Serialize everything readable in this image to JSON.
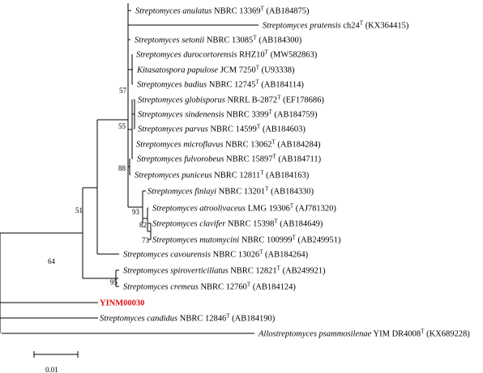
{
  "taxa": [
    {
      "genus": "Streptomyces",
      "species": "anulatus",
      "strain": "NBRC 13369",
      "accession": "(AB184875)"
    },
    {
      "genus": "Streptomyces",
      "species": "pratensis",
      "strain": "ch24",
      "accession": "(KX364415)"
    },
    {
      "genus": "Streptomyces",
      "species": "setonii",
      "strain": "NBRC 13085",
      "accession": "(AB184300)"
    },
    {
      "genus": "Streptomyces",
      "species": "durocortorensis",
      "strain": "RHZ10",
      "accession": "(MW582863)"
    },
    {
      "genus": "Kitasatospora",
      "species": "papulose",
      "strain": "JCM 7250",
      "accession": "(U93338)"
    },
    {
      "genus": "Streptomyces",
      "species": "badius",
      "strain": "NBRC 12745",
      "accession": "(AB184114)"
    },
    {
      "genus": "Streptomyces",
      "species": "globisporus",
      "strain": "NRRL B-2872",
      "accession": "(EF178686)"
    },
    {
      "genus": "Streptomyces",
      "species": "sindenensis",
      "strain": "NBRC 3399",
      "accession": "(AB184759)"
    },
    {
      "genus": "Streptomyces",
      "species": "parvus",
      "strain": "NBRC 14599",
      "accession": "(AB184603)"
    },
    {
      "genus": "Streptomyces",
      "species": "microflavus",
      "strain": "NBRC 13062",
      "accession": "(AB184284)"
    },
    {
      "genus": "Streptomyces",
      "species": "fulvorobeus",
      "strain": "NBRC 15897",
      "accession": "(AB184711)"
    },
    {
      "genus": "Streptomyces",
      "species": "puniceus",
      "strain": "NBRC 12811",
      "accession": "(AB184163)"
    },
    {
      "genus": "Streptomyces",
      "species": "finlayi",
      "strain": "NBRC 13201",
      "accession": "(AB184330)"
    },
    {
      "genus": "Streptomyces",
      "species": "atroolivaceus",
      "strain": "LMG 19306",
      "accession": "(AJ781320)"
    },
    {
      "genus": "Streptomyces",
      "species": "clavifer",
      "strain": "NBRC 15398",
      "accession": "(AB184649)"
    },
    {
      "genus": "Streptomyces",
      "species": "mutomycini",
      "strain": "NBRC 100999",
      "accession": "(AB249951)"
    },
    {
      "genus": "Streptomyces",
      "species": "cavourensis",
      "strain": "NBRC 13026",
      "accession": "(AB184264)"
    },
    {
      "genus": "Streptomyces",
      "species": "spiroverticillatus",
      "strain": "NBRC 12821",
      "accession": "(AB249921)"
    },
    {
      "genus": "Streptomyces",
      "species": "cremeus",
      "strain": "NBRC 12760",
      "accession": "(AB184124)"
    },
    {
      "highlight": "YINM00030"
    },
    {
      "genus": "Streptomyces",
      "species": "candidus",
      "strain": "NBRC 12846",
      "accession": "(AB184190)"
    },
    {
      "genus": "Allostreptomyces",
      "species": "psammosilenae",
      "strain": "YIM DR4008",
      "accession": "(KX689228)"
    }
  ],
  "type_marker": "T",
  "bootstrap": [
    "57",
    "55",
    "88",
    "93",
    "82",
    "73",
    "51",
    "64",
    "95"
  ],
  "scale_bar": {
    "label": "0.01"
  },
  "colors": {
    "highlight": "#e01010",
    "lines": "#000000"
  }
}
